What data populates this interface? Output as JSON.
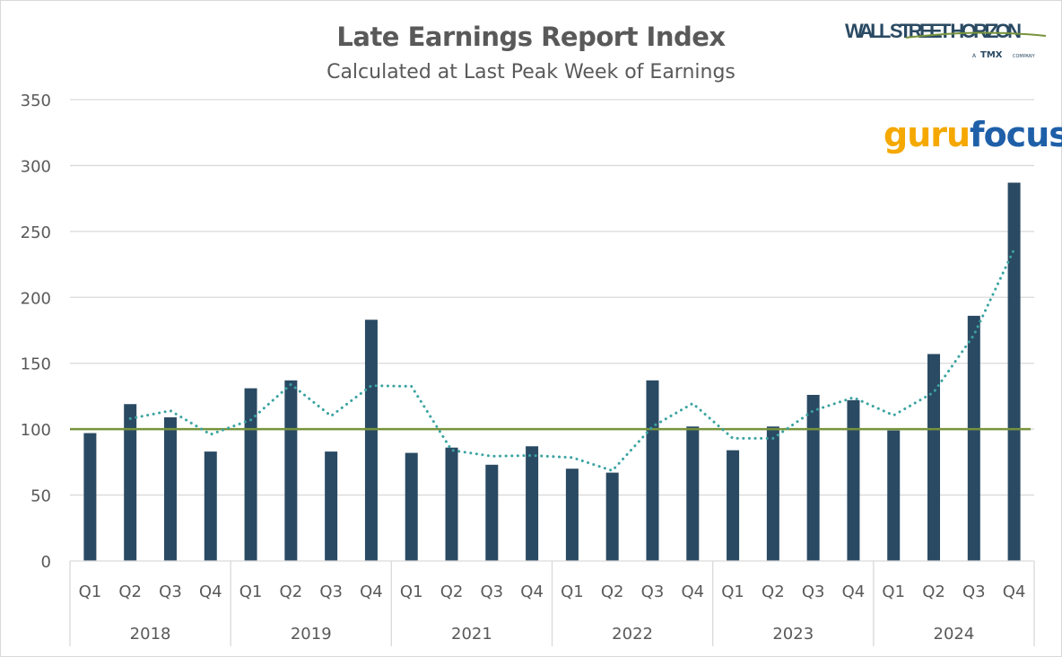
{
  "chart_data": {
    "type": "bar",
    "title": "Late Earnings Report Index",
    "subtitle": "Calculated at Last Peak Week of Earnings",
    "xlabel": "",
    "ylabel": "",
    "ylim": [
      0,
      350
    ],
    "yticks": [
      0,
      50,
      100,
      150,
      200,
      250,
      300,
      350
    ],
    "grid": true,
    "legend": "none",
    "groups": [
      {
        "year": "2018",
        "quarters": [
          "Q1",
          "Q2",
          "Q3",
          "Q4"
        ]
      },
      {
        "year": "2019",
        "quarters": [
          "Q1",
          "Q2",
          "Q3",
          "Q4"
        ]
      },
      {
        "year": "2021",
        "quarters": [
          "Q1",
          "Q2",
          "Q3",
          "Q4"
        ]
      },
      {
        "year": "2022",
        "quarters": [
          "Q1",
          "Q2",
          "Q3",
          "Q4"
        ]
      },
      {
        "year": "2023",
        "quarters": [
          "Q1",
          "Q2",
          "Q3",
          "Q4"
        ]
      },
      {
        "year": "2024",
        "quarters": [
          "Q1",
          "Q2",
          "Q3",
          "Q4"
        ]
      }
    ],
    "series": [
      {
        "type": "bar",
        "color": "#2a4a63",
        "values": [
          97,
          119,
          109,
          83,
          131,
          137,
          83,
          183,
          82,
          86,
          73,
          87,
          70,
          67,
          137,
          102,
          84,
          102,
          126,
          122,
          99,
          157,
          186,
          287
        ]
      },
      {
        "type": "line",
        "style": "dotted",
        "color": "#3aa3a0",
        "description_of_shape": "2-period moving average trendline",
        "values": [
          null,
          108,
          114,
          96,
          107,
          134,
          110,
          133,
          132.5,
          84,
          79.5,
          80,
          78.5,
          68.5,
          102,
          119.5,
          93,
          93,
          114,
          124,
          110.5,
          128,
          171.5,
          236.5
        ]
      }
    ],
    "reference_line": {
      "value": 100,
      "color": "#77933c"
    }
  },
  "logo": {
    "brand": "WALL STREET HORIZON",
    "tagline_a": "A",
    "tagline_tmx": "TMX",
    "tagline_company": "COMPANY"
  },
  "watermark": {
    "part1": "guru",
    "part2": "focus"
  }
}
